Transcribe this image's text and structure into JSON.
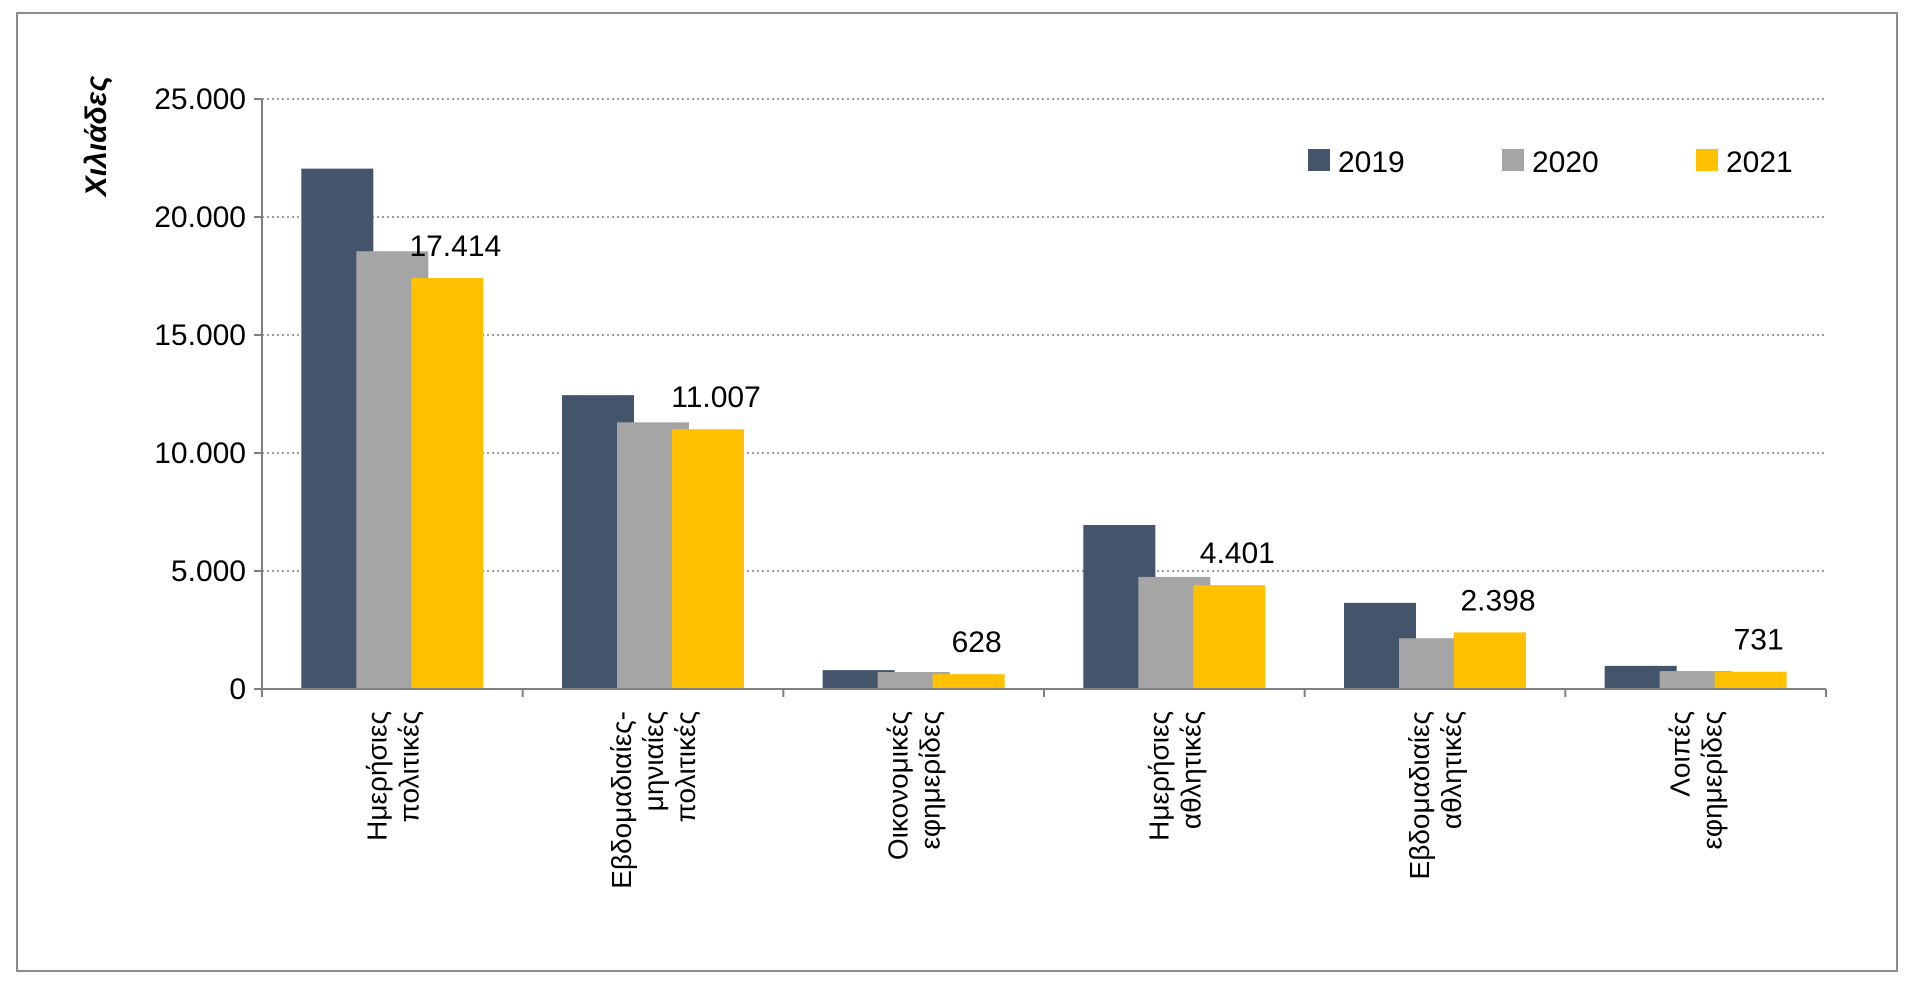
{
  "chart_data": {
    "type": "bar",
    "title": "",
    "xlabel": "",
    "ylabel": "Χιλιάδες",
    "ylim": [
      0,
      25000
    ],
    "yticks": [
      0,
      5000,
      10000,
      15000,
      20000,
      25000
    ],
    "ytick_labels": [
      "0",
      "5.000",
      "10.000",
      "15.000",
      "20.000",
      "25.000"
    ],
    "grid": true,
    "legend_position": "top-right",
    "categories": [
      [
        "Ημερήσιες",
        "πολιτικές"
      ],
      [
        "Εβδομαδιαίες-",
        "μηνιαίες",
        "πολιτικές"
      ],
      [
        "Οικονομικές",
        "εφημερίδες"
      ],
      [
        "Ημερήσιες",
        "αθλητικές"
      ],
      [
        "Εβδομαδιαίες",
        "αθλητικές"
      ],
      [
        "Λοιπές",
        "εφημερίδες"
      ]
    ],
    "series": [
      {
        "name": "2019",
        "color": "#44546a",
        "values": [
          22050,
          12450,
          800,
          6950,
          3650,
          980
        ]
      },
      {
        "name": "2020",
        "color": "#a5a5a5",
        "values": [
          18550,
          11300,
          720,
          4750,
          2150,
          760
        ]
      },
      {
        "name": "2021",
        "color": "#ffc000",
        "values": [
          17414,
          11007,
          628,
          4401,
          2398,
          731
        ]
      }
    ],
    "data_labels": {
      "series": "2021",
      "labels": [
        "17.414",
        "11.007",
        "628",
        "4.401",
        "2.398",
        "731"
      ]
    }
  }
}
